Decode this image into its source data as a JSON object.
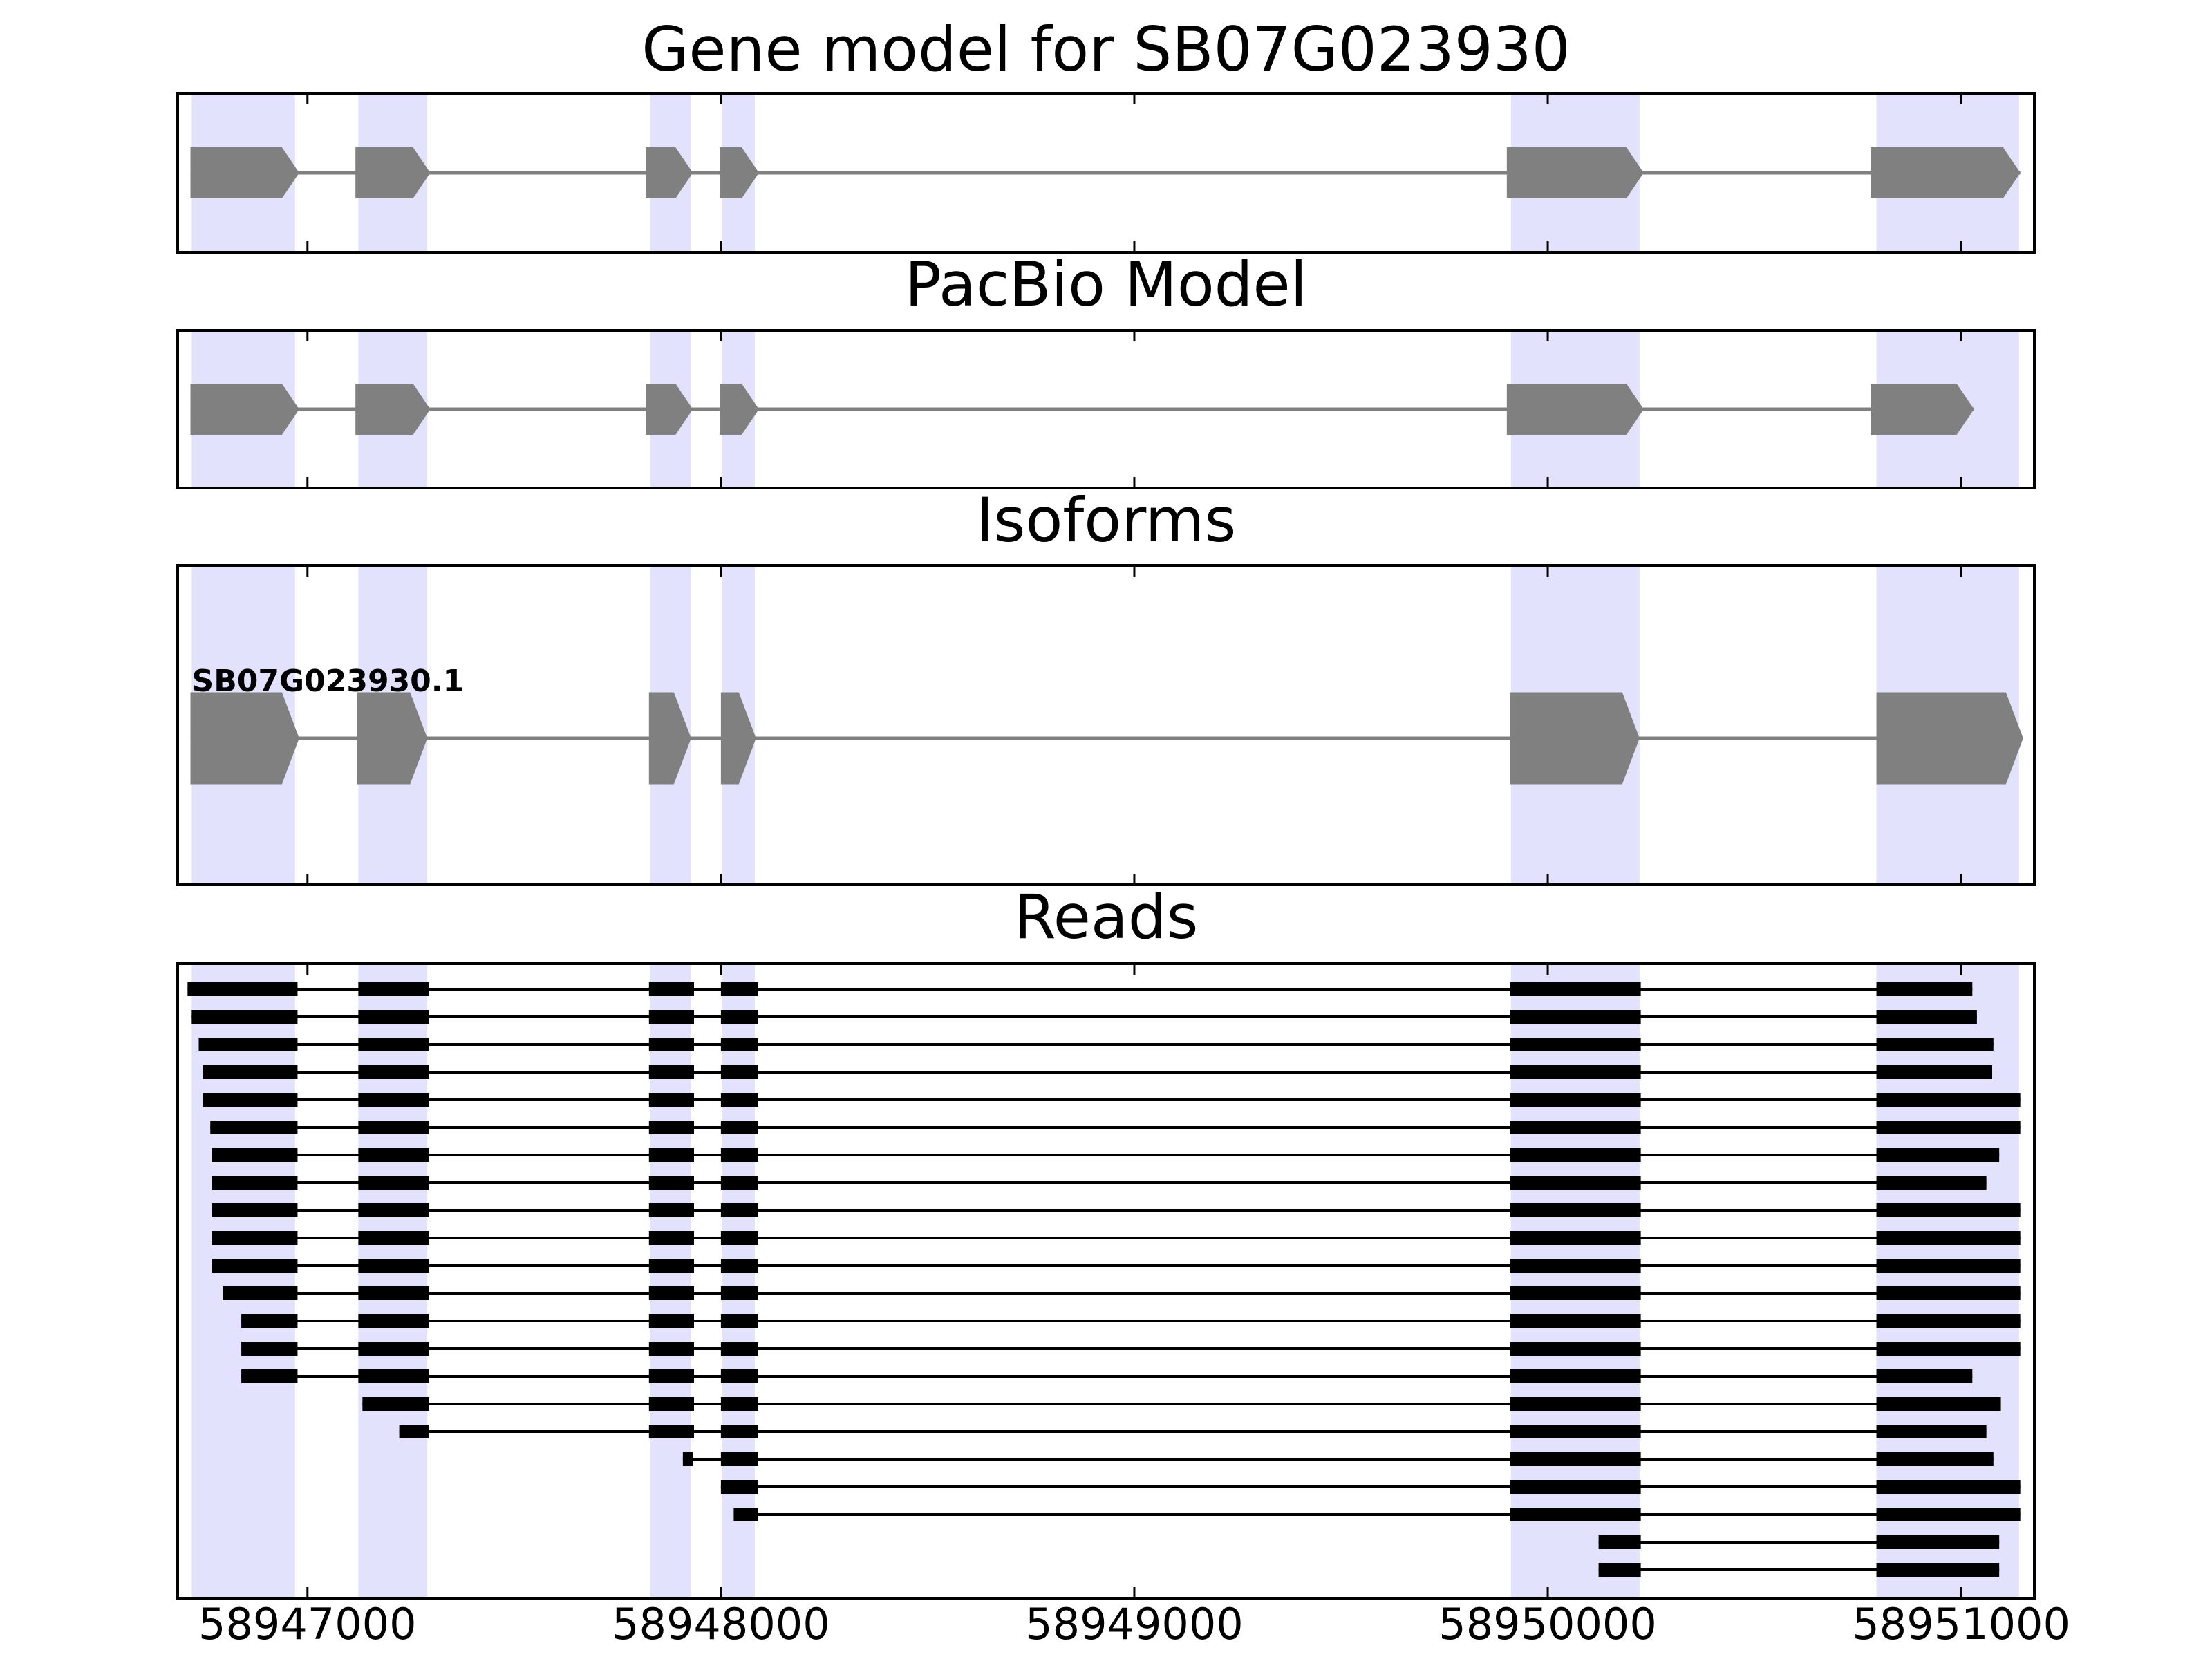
{
  "chart_data": {
    "type": "gene-tracks",
    "xlim": [
      58946686,
      58951177
    ],
    "xticks": [
      58947000,
      58948000,
      58949000,
      58950000,
      58951000
    ],
    "highlight_color": "#e2e2fc",
    "highlights": [
      [
        58946720,
        58946970
      ],
      [
        58947123,
        58947290
      ],
      [
        58947829,
        58947928
      ],
      [
        58948003,
        58948082
      ],
      [
        58949911,
        58950222
      ],
      [
        58950795,
        58951140
      ]
    ],
    "panels": [
      {
        "type": "model",
        "title": "Gene model for SB07G023930",
        "color": "#808080",
        "exons": [
          [
            58946717,
            58946980
          ],
          [
            58947116,
            58947297
          ],
          [
            58947819,
            58947932
          ],
          [
            58947997,
            58948092
          ],
          [
            58949901,
            58950232
          ],
          [
            58950781,
            58951143
          ]
        ]
      },
      {
        "type": "model",
        "title": "PacBio Model",
        "color": "#808080",
        "exons": [
          [
            58946717,
            58946980
          ],
          [
            58947116,
            58947297
          ],
          [
            58947819,
            58947932
          ],
          [
            58947997,
            58948092
          ],
          [
            58949901,
            58950232
          ],
          [
            58950781,
            58951031
          ]
        ]
      },
      {
        "type": "isoforms",
        "title": "Isoforms",
        "color": "#808080",
        "isoforms": [
          {
            "name": "SB07G023930.1",
            "exons": [
              [
                58946717,
                58946980
              ],
              [
                58947119,
                58947290
              ],
              [
                58947826,
                58947928
              ],
              [
                58948000,
                58948085
              ],
              [
                58949908,
                58950222
              ],
              [
                58950795,
                58951150
              ]
            ]
          }
        ]
      },
      {
        "type": "reads",
        "title": "Reads",
        "color": "#000000",
        "reads": [
          [
            [
              58946710,
              58946976
            ],
            [
              58947123,
              58947294
            ],
            [
              58947826,
              58947935
            ],
            [
              58948000,
              58948089
            ],
            [
              58949908,
              58950225
            ],
            [
              58950795,
              58951027
            ]
          ],
          [
            [
              58946720,
              58946976
            ],
            [
              58947123,
              58947294
            ],
            [
              58947826,
              58947935
            ],
            [
              58948000,
              58948089
            ],
            [
              58949908,
              58950225
            ],
            [
              58950795,
              58951038
            ]
          ],
          [
            [
              58946737,
              58946976
            ],
            [
              58947123,
              58947294
            ],
            [
              58947826,
              58947935
            ],
            [
              58948000,
              58948089
            ],
            [
              58949908,
              58950225
            ],
            [
              58950795,
              58951078
            ]
          ],
          [
            [
              58946747,
              58946976
            ],
            [
              58947123,
              58947294
            ],
            [
              58947826,
              58947935
            ],
            [
              58948000,
              58948089
            ],
            [
              58949908,
              58950225
            ],
            [
              58950795,
              58951075
            ]
          ],
          [
            [
              58946747,
              58946976
            ],
            [
              58947123,
              58947294
            ],
            [
              58947826,
              58947935
            ],
            [
              58948000,
              58948089
            ],
            [
              58949908,
              58950225
            ],
            [
              58950795,
              58951143
            ]
          ],
          [
            [
              58946765,
              58946976
            ],
            [
              58947123,
              58947294
            ],
            [
              58947826,
              58947935
            ],
            [
              58948000,
              58948089
            ],
            [
              58949908,
              58950225
            ],
            [
              58950795,
              58951143
            ]
          ],
          [
            [
              58946768,
              58946976
            ],
            [
              58947123,
              58947294
            ],
            [
              58947826,
              58947935
            ],
            [
              58948000,
              58948089
            ],
            [
              58949908,
              58950225
            ],
            [
              58950795,
              58951092
            ]
          ],
          [
            [
              58946768,
              58946976
            ],
            [
              58947123,
              58947294
            ],
            [
              58947826,
              58947935
            ],
            [
              58948000,
              58948089
            ],
            [
              58949908,
              58950225
            ],
            [
              58950795,
              58951061
            ]
          ],
          [
            [
              58946768,
              58946976
            ],
            [
              58947123,
              58947294
            ],
            [
              58947826,
              58947935
            ],
            [
              58948000,
              58948089
            ],
            [
              58949908,
              58950225
            ],
            [
              58950795,
              58951143
            ]
          ],
          [
            [
              58946768,
              58946976
            ],
            [
              58947123,
              58947294
            ],
            [
              58947826,
              58947935
            ],
            [
              58948000,
              58948089
            ],
            [
              58949908,
              58950225
            ],
            [
              58950795,
              58951143
            ]
          ],
          [
            [
              58946768,
              58946976
            ],
            [
              58947123,
              58947294
            ],
            [
              58947826,
              58947935
            ],
            [
              58948000,
              58948089
            ],
            [
              58949908,
              58950225
            ],
            [
              58950795,
              58951143
            ]
          ],
          [
            [
              58946795,
              58946976
            ],
            [
              58947123,
              58947294
            ],
            [
              58947826,
              58947935
            ],
            [
              58948000,
              58948089
            ],
            [
              58949908,
              58950225
            ],
            [
              58950795,
              58951143
            ]
          ],
          [
            [
              58946840,
              58946976
            ],
            [
              58947123,
              58947294
            ],
            [
              58947826,
              58947935
            ],
            [
              58948000,
              58948089
            ],
            [
              58949908,
              58950225
            ],
            [
              58950795,
              58951143
            ]
          ],
          [
            [
              58946840,
              58946976
            ],
            [
              58947123,
              58947294
            ],
            [
              58947826,
              58947935
            ],
            [
              58948000,
              58948089
            ],
            [
              58949908,
              58950225
            ],
            [
              58950795,
              58951143
            ]
          ],
          [
            [
              58946840,
              58946976
            ],
            [
              58947123,
              58947294
            ],
            [
              58947826,
              58947935
            ],
            [
              58948000,
              58948089
            ],
            [
              58949908,
              58950225
            ],
            [
              58950795,
              58951027
            ]
          ],
          [
            [
              58947133,
              58947294
            ],
            [
              58947826,
              58947935
            ],
            [
              58948000,
              58948089
            ],
            [
              58949908,
              58950225
            ],
            [
              58950795,
              58951096
            ]
          ],
          [
            [
              58947222,
              58947294
            ],
            [
              58947826,
              58947935
            ],
            [
              58948000,
              58948089
            ],
            [
              58949908,
              58950225
            ],
            [
              58950795,
              58951061
            ]
          ],
          [
            [
              58947908,
              58947932
            ],
            [
              58948000,
              58948089
            ],
            [
              58949908,
              58950225
            ],
            [
              58950795,
              58951078
            ]
          ],
          [
            [
              58948000,
              58948089
            ],
            [
              58949908,
              58950225
            ],
            [
              58950795,
              58951143
            ]
          ],
          [
            [
              58948031,
              58948089
            ],
            [
              58949908,
              58950225
            ],
            [
              58950795,
              58951143
            ]
          ],
          [
            [
              58950123,
              58950225
            ],
            [
              58950795,
              58951092
            ]
          ],
          [
            [
              58950123,
              58950225
            ],
            [
              58950795,
              58951092
            ]
          ]
        ]
      }
    ]
  }
}
